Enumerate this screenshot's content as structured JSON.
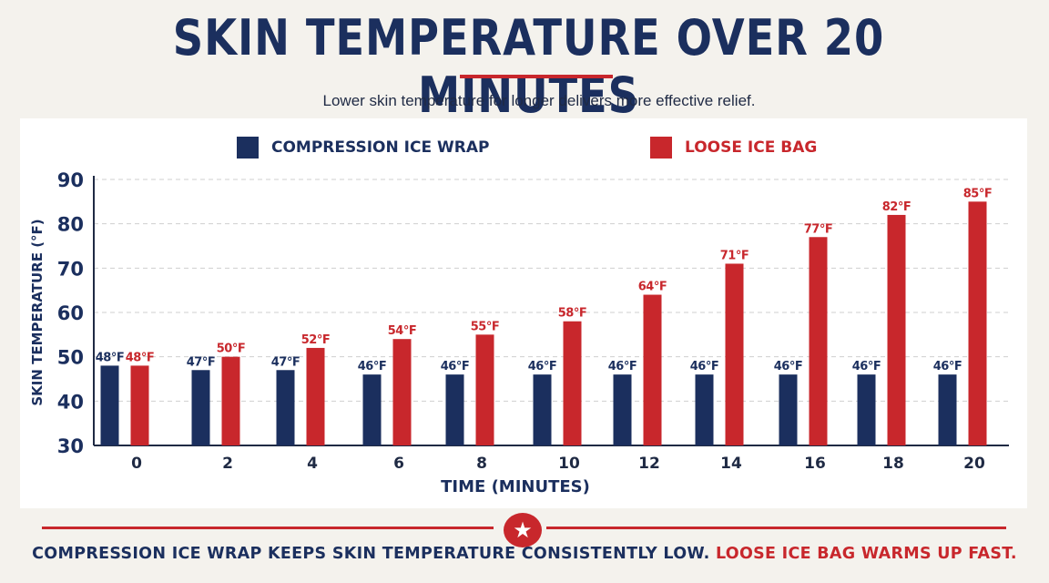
{
  "header": {
    "title": "SKIN TEMPERATURE OVER 20 MINUTES",
    "subtitle": "Lower skin temperature for longer delivers more effective relief."
  },
  "colors": {
    "wrap": "#1b2f5e",
    "loose": "#c8272c",
    "grid": "#cfcfcf"
  },
  "footer": {
    "icon": "star-icon",
    "text_wrap": "COMPRESSION ICE WRAP KEEPS SKIN TEMPERATURE CONSISTENTLY LOW.",
    "text_loose": "LOOSE ICE BAG WARMS UP FAST."
  },
  "chart_data": {
    "type": "bar",
    "xlabel": "TIME (MINUTES)",
    "ylabel": "SKIN TEMPERATURE (°F)",
    "ylim": [
      30,
      90
    ],
    "yticks": [
      30,
      40,
      50,
      60,
      70,
      80,
      90
    ],
    "grid": true,
    "legend_position": "top",
    "categories": [
      "0",
      "2",
      "4",
      "6",
      "8",
      "10",
      "12",
      "14",
      "16",
      "18",
      "20"
    ],
    "series": [
      {
        "name": "COMPRESSION ICE WRAP",
        "values": [
          48,
          47,
          47,
          46,
          46,
          46,
          46,
          46,
          46,
          46,
          46
        ],
        "labels": [
          "48°F",
          "47°F",
          "47°F",
          "46°F",
          "46°F",
          "46°F",
          "46°F",
          "46°F",
          "46°F",
          "46°F",
          "46°F"
        ]
      },
      {
        "name": "LOOSE ICE BAG",
        "values": [
          48,
          50,
          52,
          54,
          55,
          58,
          64,
          71,
          77,
          82,
          85
        ],
        "labels": [
          "48°F",
          "50°F",
          "52°F",
          "54°F",
          "55°F",
          "58°F",
          "64°F",
          "71°F",
          "77°F",
          "82°F",
          "85°F"
        ]
      }
    ]
  }
}
